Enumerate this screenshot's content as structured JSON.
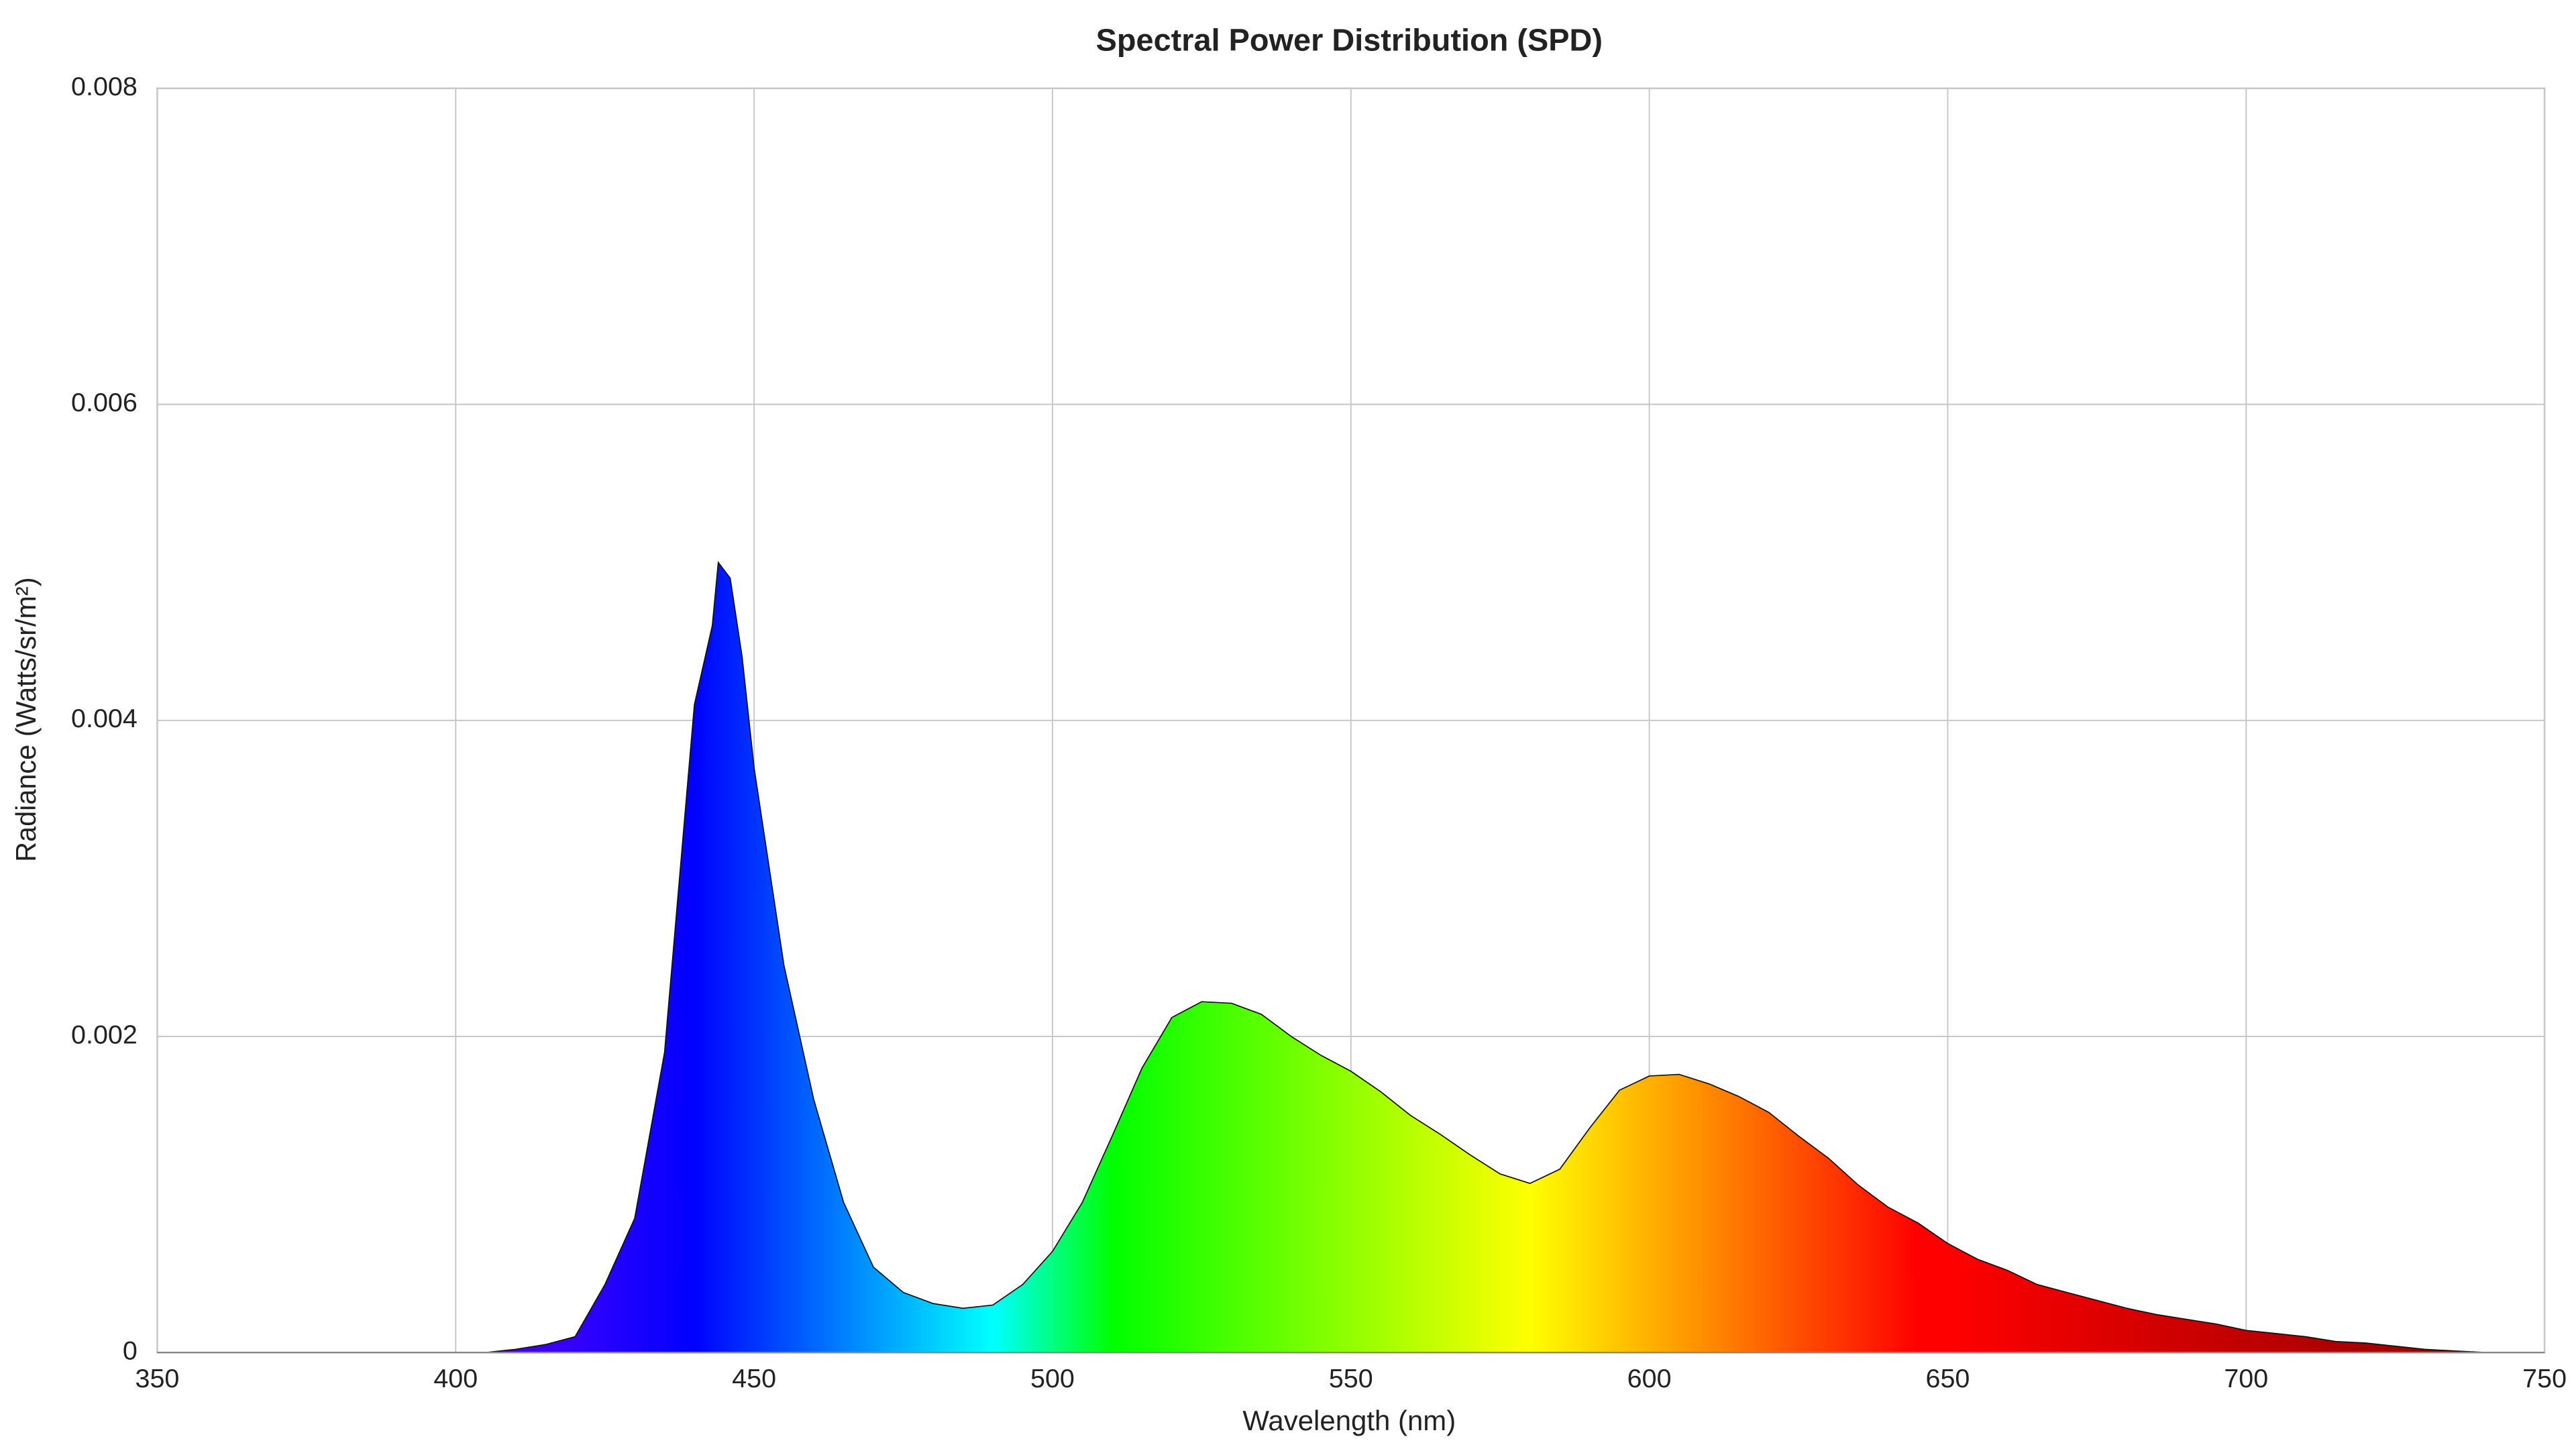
{
  "chart_data": {
    "type": "area",
    "title": "Spectral Power Distribution (SPD)",
    "x_label": "Wavelength (nm)",
    "y_label": "Radiance (Watts/sr/m²)",
    "x": [
      350,
      355,
      360,
      365,
      370,
      375,
      380,
      385,
      390,
      395,
      400,
      405,
      410,
      415,
      420,
      425,
      430,
      435,
      440,
      443,
      444,
      446,
      448,
      450,
      455,
      460,
      465,
      470,
      475,
      480,
      485,
      490,
      495,
      500,
      505,
      510,
      515,
      520,
      525,
      530,
      535,
      540,
      545,
      550,
      555,
      560,
      565,
      570,
      575,
      580,
      585,
      590,
      595,
      600,
      605,
      610,
      615,
      620,
      625,
      630,
      635,
      640,
      645,
      650,
      655,
      660,
      665,
      670,
      675,
      680,
      685,
      690,
      695,
      700,
      705,
      710,
      715,
      720,
      725,
      730,
      735,
      740,
      745,
      750
    ],
    "series": [
      {
        "values": [
          0,
          0,
          0,
          0,
          0,
          0,
          0,
          0,
          0,
          0,
          0,
          0,
          2e-05,
          5e-05,
          0.0001,
          0.00043,
          0.00085,
          0.0019,
          0.0041,
          0.0046,
          0.005,
          0.0049,
          0.0044,
          0.0037,
          0.00245,
          0.0016,
          0.00095,
          0.00054,
          0.00038,
          0.00031,
          0.00028,
          0.0003,
          0.00043,
          0.00064,
          0.00095,
          0.00137,
          0.0018,
          0.00212,
          0.00222,
          0.00221,
          0.00214,
          0.002,
          0.00188,
          0.00178,
          0.00165,
          0.0015,
          0.00138,
          0.00125,
          0.00113,
          0.00107,
          0.00116,
          0.00142,
          0.00166,
          0.00175,
          0.00176,
          0.0017,
          0.00162,
          0.00152,
          0.00137,
          0.00123,
          0.00106,
          0.00092,
          0.00082,
          0.00069,
          0.00059,
          0.00052,
          0.00043,
          0.00038,
          0.00033,
          0.00028,
          0.00024,
          0.00021,
          0.00018,
          0.00014,
          0.00012,
          0.0001,
          7e-05,
          6e-05,
          4e-05,
          2e-05,
          1e-05,
          0,
          0,
          0
        ]
      }
    ],
    "xlim": [
      350,
      750
    ],
    "xticks": [
      350,
      400,
      450,
      500,
      550,
      600,
      650,
      700,
      750
    ],
    "ylim": [
      0,
      0.008
    ],
    "yticks": [
      0,
      0.002,
      0.004,
      0.006,
      0.008
    ],
    "grid": true
  }
}
